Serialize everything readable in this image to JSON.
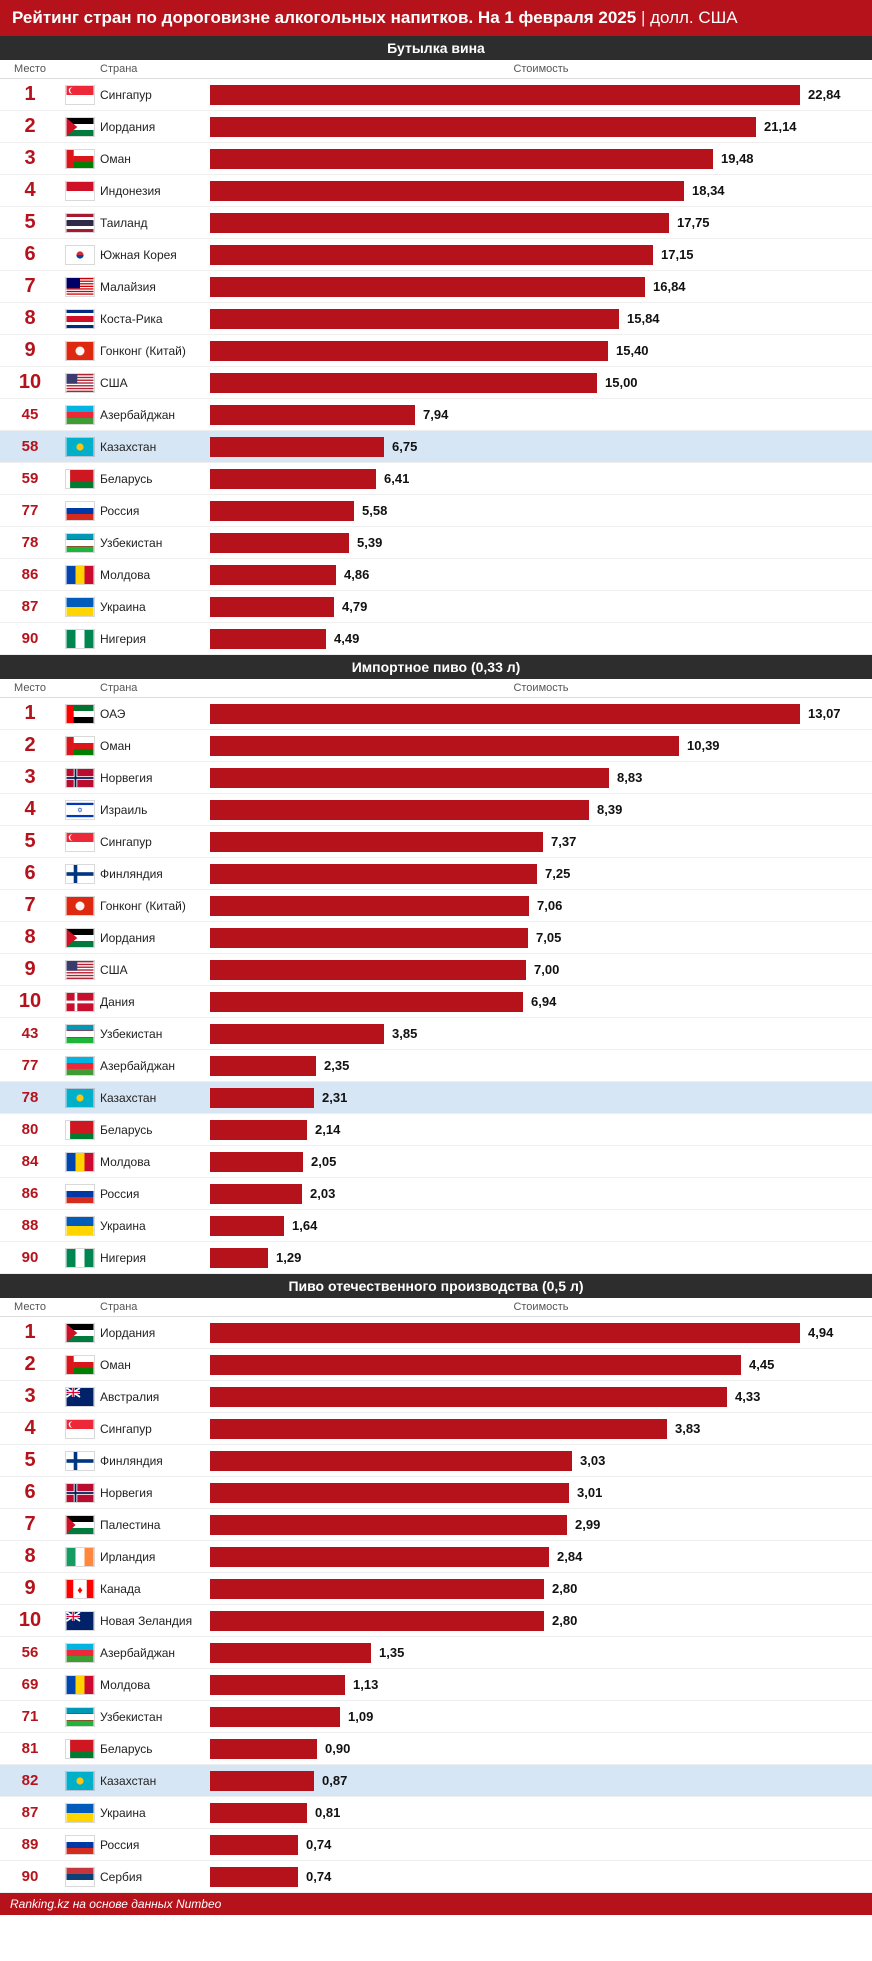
{
  "title_main": "Рейтинг стран по дороговизне алкогольных напитков. На 1 февраля 2025",
  "title_sep": " | ",
  "title_unit": "долл. США",
  "columns": {
    "rank": "Место",
    "country": "Страна",
    "cost": "Стоимость"
  },
  "bar_color": "#b5121b",
  "highlight_color": "#d7e6f5",
  "footer": "Ranking.kz на основе данных Numbeo",
  "sections": [
    {
      "title": "Бутылка вина",
      "max": 22.84,
      "rows": [
        {
          "rank": 1,
          "country": "Сингапур",
          "value": "22,84",
          "num": 22.84,
          "flag": "sg",
          "hl": false
        },
        {
          "rank": 2,
          "country": "Иордания",
          "value": "21,14",
          "num": 21.14,
          "flag": "jo",
          "hl": false
        },
        {
          "rank": 3,
          "country": "Оман",
          "value": "19,48",
          "num": 19.48,
          "flag": "om",
          "hl": false
        },
        {
          "rank": 4,
          "country": "Индонезия",
          "value": "18,34",
          "num": 18.34,
          "flag": "id",
          "hl": false
        },
        {
          "rank": 5,
          "country": "Таиланд",
          "value": "17,75",
          "num": 17.75,
          "flag": "th",
          "hl": false
        },
        {
          "rank": 6,
          "country": "Южная Корея",
          "value": "17,15",
          "num": 17.15,
          "flag": "kr",
          "hl": false
        },
        {
          "rank": 7,
          "country": "Малайзия",
          "value": "16,84",
          "num": 16.84,
          "flag": "my",
          "hl": false
        },
        {
          "rank": 8,
          "country": "Коста-Рика",
          "value": "15,84",
          "num": 15.84,
          "flag": "cr",
          "hl": false
        },
        {
          "rank": 9,
          "country": "Гонконг (Китай)",
          "value": "15,40",
          "num": 15.4,
          "flag": "hk",
          "hl": false
        },
        {
          "rank": 10,
          "country": "США",
          "value": "15,00",
          "num": 15.0,
          "flag": "us",
          "hl": false
        },
        {
          "rank": 45,
          "country": "Азербайджан",
          "value": "7,94",
          "num": 7.94,
          "flag": "az",
          "hl": false
        },
        {
          "rank": 58,
          "country": "Казахстан",
          "value": "6,75",
          "num": 6.75,
          "flag": "kz",
          "hl": true
        },
        {
          "rank": 59,
          "country": "Беларусь",
          "value": "6,41",
          "num": 6.41,
          "flag": "by",
          "hl": false
        },
        {
          "rank": 77,
          "country": "Россия",
          "value": "5,58",
          "num": 5.58,
          "flag": "ru",
          "hl": false
        },
        {
          "rank": 78,
          "country": "Узбекистан",
          "value": "5,39",
          "num": 5.39,
          "flag": "uz",
          "hl": false
        },
        {
          "rank": 86,
          "country": "Молдова",
          "value": "4,86",
          "num": 4.86,
          "flag": "md",
          "hl": false
        },
        {
          "rank": 87,
          "country": "Украина",
          "value": "4,79",
          "num": 4.79,
          "flag": "ua",
          "hl": false
        },
        {
          "rank": 90,
          "country": "Нигерия",
          "value": "4,49",
          "num": 4.49,
          "flag": "ng",
          "hl": false
        }
      ]
    },
    {
      "title": "Импортное пиво (0,33 л)",
      "max": 13.07,
      "rows": [
        {
          "rank": 1,
          "country": "ОАЭ",
          "value": "13,07",
          "num": 13.07,
          "flag": "ae",
          "hl": false
        },
        {
          "rank": 2,
          "country": "Оман",
          "value": "10,39",
          "num": 10.39,
          "flag": "om",
          "hl": false
        },
        {
          "rank": 3,
          "country": "Норвегия",
          "value": "8,83",
          "num": 8.83,
          "flag": "no",
          "hl": false
        },
        {
          "rank": 4,
          "country": "Израиль",
          "value": "8,39",
          "num": 8.39,
          "flag": "il",
          "hl": false
        },
        {
          "rank": 5,
          "country": "Сингапур",
          "value": "7,37",
          "num": 7.37,
          "flag": "sg",
          "hl": false
        },
        {
          "rank": 6,
          "country": "Финляндия",
          "value": "7,25",
          "num": 7.25,
          "flag": "fi",
          "hl": false
        },
        {
          "rank": 7,
          "country": "Гонконг (Китай)",
          "value": "7,06",
          "num": 7.06,
          "flag": "hk",
          "hl": false
        },
        {
          "rank": 8,
          "country": "Иордания",
          "value": "7,05",
          "num": 7.05,
          "flag": "jo",
          "hl": false
        },
        {
          "rank": 9,
          "country": "США",
          "value": "7,00",
          "num": 7.0,
          "flag": "us",
          "hl": false
        },
        {
          "rank": 10,
          "country": "Дания",
          "value": "6,94",
          "num": 6.94,
          "flag": "dk",
          "hl": false
        },
        {
          "rank": 43,
          "country": "Узбекистан",
          "value": "3,85",
          "num": 3.85,
          "flag": "uz",
          "hl": false
        },
        {
          "rank": 77,
          "country": "Азербайджан",
          "value": "2,35",
          "num": 2.35,
          "flag": "az",
          "hl": false
        },
        {
          "rank": 78,
          "country": "Казахстан",
          "value": "2,31",
          "num": 2.31,
          "flag": "kz",
          "hl": true
        },
        {
          "rank": 80,
          "country": "Беларусь",
          "value": "2,14",
          "num": 2.14,
          "flag": "by",
          "hl": false
        },
        {
          "rank": 84,
          "country": "Молдова",
          "value": "2,05",
          "num": 2.05,
          "flag": "md",
          "hl": false
        },
        {
          "rank": 86,
          "country": "Россия",
          "value": "2,03",
          "num": 2.03,
          "flag": "ru",
          "hl": false
        },
        {
          "rank": 88,
          "country": "Украина",
          "value": "1,64",
          "num": 1.64,
          "flag": "ua",
          "hl": false
        },
        {
          "rank": 90,
          "country": "Нигерия",
          "value": "1,29",
          "num": 1.29,
          "flag": "ng",
          "hl": false
        }
      ]
    },
    {
      "title": "Пиво отечественного производства (0,5 л)",
      "max": 4.94,
      "rows": [
        {
          "rank": 1,
          "country": "Иордания",
          "value": "4,94",
          "num": 4.94,
          "flag": "jo",
          "hl": false
        },
        {
          "rank": 2,
          "country": "Оман",
          "value": "4,45",
          "num": 4.45,
          "flag": "om",
          "hl": false
        },
        {
          "rank": 3,
          "country": "Австралия",
          "value": "4,33",
          "num": 4.33,
          "flag": "au",
          "hl": false
        },
        {
          "rank": 4,
          "country": "Сингапур",
          "value": "3,83",
          "num": 3.83,
          "flag": "sg",
          "hl": false
        },
        {
          "rank": 5,
          "country": "Финляндия",
          "value": "3,03",
          "num": 3.03,
          "flag": "fi",
          "hl": false
        },
        {
          "rank": 6,
          "country": "Норвегия",
          "value": "3,01",
          "num": 3.01,
          "flag": "no",
          "hl": false
        },
        {
          "rank": 7,
          "country": "Палестина",
          "value": "2,99",
          "num": 2.99,
          "flag": "ps",
          "hl": false
        },
        {
          "rank": 8,
          "country": "Ирландия",
          "value": "2,84",
          "num": 2.84,
          "flag": "ie",
          "hl": false
        },
        {
          "rank": 9,
          "country": "Канада",
          "value": "2,80",
          "num": 2.8,
          "flag": "ca",
          "hl": false
        },
        {
          "rank": 10,
          "country": "Новая Зеландия",
          "value": "2,80",
          "num": 2.8,
          "flag": "nz",
          "hl": false
        },
        {
          "rank": 56,
          "country": "Азербайджан",
          "value": "1,35",
          "num": 1.35,
          "flag": "az",
          "hl": false
        },
        {
          "rank": 69,
          "country": "Молдова",
          "value": "1,13",
          "num": 1.13,
          "flag": "md",
          "hl": false
        },
        {
          "rank": 71,
          "country": "Узбекистан",
          "value": "1,09",
          "num": 1.09,
          "flag": "uz",
          "hl": false
        },
        {
          "rank": 81,
          "country": "Беларусь",
          "value": "0,90",
          "num": 0.9,
          "flag": "by",
          "hl": false
        },
        {
          "rank": 82,
          "country": "Казахстан",
          "value": "0,87",
          "num": 0.87,
          "flag": "kz",
          "hl": true
        },
        {
          "rank": 87,
          "country": "Украина",
          "value": "0,81",
          "num": 0.81,
          "flag": "ua",
          "hl": false
        },
        {
          "rank": 89,
          "country": "Россия",
          "value": "0,74",
          "num": 0.74,
          "flag": "ru",
          "hl": false
        },
        {
          "rank": 90,
          "country": "Сербия",
          "value": "0,74",
          "num": 0.74,
          "flag": "rs",
          "hl": false
        }
      ]
    }
  ],
  "flags": {
    "sg": {
      "type": "svg",
      "svg": "<rect width='30' height='10' fill='#ed2939'/><rect y='10' width='30' height='10' fill='#fff'/><circle cx='6' cy='5' r='3.5' fill='#fff'/><circle cx='7.5' cy='5' r='3.5' fill='#ed2939'/>"
    },
    "jo": {
      "type": "svg",
      "svg": "<rect width='30' height='6.67' fill='#000'/><rect y='6.67' width='30' height='6.67' fill='#fff'/><rect y='13.33' width='30' height='6.67' fill='#007a3d'/><polygon points='0,0 12,10 0,20' fill='#ce1126'/>"
    },
    "om": {
      "type": "svg",
      "svg": "<rect width='30' height='20' fill='#fff'/><rect y='13.33' width='30' height='6.67' fill='#008000'/><rect width='8' height='20' fill='#db161b'/><rect width='30' height='6.67' y='0' fill='#db161b' opacity='0'/><rect y='0' x='8' width='22' height='6.67' fill='#fff'/><rect y='6.67' x='8' width='22' height='6.67' fill='#db161b'/><rect y='6.67' x='8' width='22' height='6.67' fill='#db161b' opacity='0'/><rect width='30' height='6.67' fill='#fff' x='8'/><rect width='8' height='20' fill='#db161b'/><rect x='8' y='6.67' width='22' height='6.67' fill='#db161b'/>"
    },
    "id": {
      "type": "svg",
      "svg": "<rect width='30' height='10' fill='#ce1126'/><rect y='10' width='30' height='10' fill='#fff'/>"
    },
    "th": {
      "type": "svg",
      "svg": "<rect width='30' height='20' fill='#a51931'/><rect y='3.33' width='30' height='13.33' fill='#fff'/><rect y='6.67' width='30' height='6.67' fill='#2d2a4a'/>"
    },
    "kr": {
      "type": "svg",
      "svg": "<rect width='30' height='20' fill='#fff'/><circle cx='15' cy='10' r='4' fill='#cd2e3a'/><path d='M11 10 A4 4 0 0 0 19 10' fill='#0047a0'/>"
    },
    "my": {
      "type": "svg",
      "svg": "<rect width='30' height='20' fill='#cc0001'/><rect y='1.43' width='30' height='1.43' fill='#fff'/><rect y='4.29' width='30' height='1.43' fill='#fff'/><rect y='7.14' width='30' height='1.43' fill='#fff'/><rect y='10' width='30' height='1.43' fill='#fff'/><rect y='12.86' width='30' height='1.43' fill='#fff'/><rect y='15.71' width='30' height='1.43' fill='#fff'/><rect y='18.57' width='30' height='1.43' fill='#fff'/><rect width='15' height='11.43' fill='#010066'/>"
    },
    "cr": {
      "type": "svg",
      "svg": "<rect width='30' height='20' fill='#002b7f'/><rect y='3.33' width='30' height='13.33' fill='#fff'/><rect y='6.67' width='30' height='6.67' fill='#ce1126'/>"
    },
    "hk": {
      "type": "svg",
      "svg": "<rect width='30' height='20' fill='#de2910'/><circle cx='15' cy='10' r='5' fill='#fff' opacity='0.95'/>"
    },
    "us": {
      "type": "svg",
      "svg": "<rect width='30' height='20' fill='#b22234'/><rect y='1.54' width='30' height='1.54' fill='#fff'/><rect y='4.62' width='30' height='1.54' fill='#fff'/><rect y='7.69' width='30' height='1.54' fill='#fff'/><rect y='10.77' width='30' height='1.54' fill='#fff'/><rect y='13.85' width='30' height='1.54' fill='#fff'/><rect y='16.92' width='30' height='1.54' fill='#fff'/><rect width='12' height='10.77' fill='#3c3b6e'/>"
    },
    "az": {
      "type": "svg",
      "svg": "<rect width='30' height='6.67' fill='#00b5e2'/><rect y='6.67' width='30' height='6.67' fill='#ed2939'/><rect y='13.33' width='30' height='6.67' fill='#3f9c35'/>"
    },
    "kz": {
      "type": "svg",
      "svg": "<rect width='30' height='20' fill='#00afca'/><circle cx='15' cy='10' r='4' fill='#fec50c'/>"
    },
    "by": {
      "type": "svg",
      "svg": "<rect width='30' height='13.33' fill='#ce1720'/><rect y='13.33' width='30' height='6.67' fill='#007c30'/><rect width='4' height='20' fill='#fff'/>"
    },
    "ru": {
      "type": "svg",
      "svg": "<rect width='30' height='6.67' fill='#fff'/><rect y='6.67' width='30' height='6.67' fill='#0039a6'/><rect y='13.33' width='30' height='6.67' fill='#d52b1e'/>"
    },
    "uz": {
      "type": "svg",
      "svg": "<rect width='30' height='6.67' fill='#1eb53a' y='13.33'/><rect width='30' height='6.67' fill='#0099b5'/><rect y='6.67' width='30' height='6.67' fill='#fff'/><rect y='6' width='30' height='0.67' fill='#ce1126'/><rect y='13.33' width='30' height='0.67' fill='#ce1126'/>"
    },
    "md": {
      "type": "svg",
      "svg": "<rect width='10' height='20' fill='#0046ae'/><rect x='10' width='10' height='20' fill='#ffd200'/><rect x='20' width='10' height='20' fill='#cc092f'/>"
    },
    "ua": {
      "type": "svg",
      "svg": "<rect width='30' height='10' fill='#005bbb'/><rect y='10' width='30' height='10' fill='#ffd500'/>"
    },
    "ng": {
      "type": "svg",
      "svg": "<rect width='10' height='20' fill='#008751'/><rect x='10' width='10' height='20' fill='#fff'/><rect x='20' width='10' height='20' fill='#008751'/>"
    },
    "ae": {
      "type": "svg",
      "svg": "<rect width='30' height='6.67' fill='#00732f'/><rect y='6.67' width='30' height='6.67' fill='#fff'/><rect y='13.33' width='30' height='6.67' fill='#000'/><rect width='8' height='20' fill='#ff0000'/>"
    },
    "no": {
      "type": "svg",
      "svg": "<rect width='30' height='20' fill='#ba0c2f'/><rect x='8' width='4' height='20' fill='#fff'/><rect y='8' width='30' height='4' fill='#fff'/><rect x='9' width='2' height='20' fill='#00205b'/><rect y='9' width='30' height='2' fill='#00205b'/>"
    },
    "il": {
      "type": "svg",
      "svg": "<rect width='30' height='20' fill='#fff'/><rect y='2' width='30' height='2.5' fill='#0038b8'/><rect y='15.5' width='30' height='2.5' fill='#0038b8'/><text x='15' y='13' font-size='8' text-anchor='middle' fill='#0038b8'>✡</text>"
    },
    "fi": {
      "type": "svg",
      "svg": "<rect width='30' height='20' fill='#fff'/><rect x='8' width='4' height='20' fill='#003580'/><rect y='8' width='30' height='4' fill='#003580'/>"
    },
    "dk": {
      "type": "svg",
      "svg": "<rect width='30' height='20' fill='#c8102e'/><rect x='9' width='3' height='20' fill='#fff'/><rect y='8.5' width='30' height='3' fill='#fff'/>"
    },
    "au": {
      "type": "svg",
      "svg": "<rect width='30' height='20' fill='#012169'/><rect width='15' height='10' fill='#012169'/><path d='M0 0 L15 10 M15 0 L0 10' stroke='#fff' stroke-width='2'/><path d='M7.5 0 V10 M0 5 H15' stroke='#fff' stroke-width='3'/><path d='M7.5 0 V10 M0 5 H15' stroke='#e4002b' stroke-width='1.5'/>"
    },
    "ps": {
      "type": "svg",
      "svg": "<rect width='30' height='6.67' fill='#000'/><rect y='6.67' width='30' height='6.67' fill='#fff'/><rect y='13.33' width='30' height='6.67' fill='#007a3d'/><polygon points='0,0 10,10 0,20' fill='#ce1126'/>"
    },
    "ie": {
      "type": "svg",
      "svg": "<rect width='10' height='20' fill='#169b62'/><rect x='10' width='10' height='20' fill='#fff'/><rect x='20' width='10' height='20' fill='#ff883e'/>"
    },
    "ca": {
      "type": "svg",
      "svg": "<rect width='30' height='20' fill='#ff0000'/><rect x='7.5' width='15' height='20' fill='#fff'/><text x='15' y='15' font-size='12' text-anchor='middle' fill='#ff0000'>♦</text>"
    },
    "nz": {
      "type": "svg",
      "svg": "<rect width='30' height='20' fill='#012169'/><path d='M0 0 L15 10 M15 0 L0 10' stroke='#fff' stroke-width='2'/><path d='M7.5 0 V10 M0 5 H15' stroke='#fff' stroke-width='3'/><path d='M7.5 0 V10 M0 5 H15' stroke='#e4002b' stroke-width='1.5'/>"
    },
    "rs": {
      "type": "svg",
      "svg": "<rect width='30' height='6.67' fill='#c6363c'/><rect y='6.67' width='30' height='6.67' fill='#0c4076'/><rect y='13.33' width='30' height='6.67' fill='#fff'/>"
    }
  }
}
